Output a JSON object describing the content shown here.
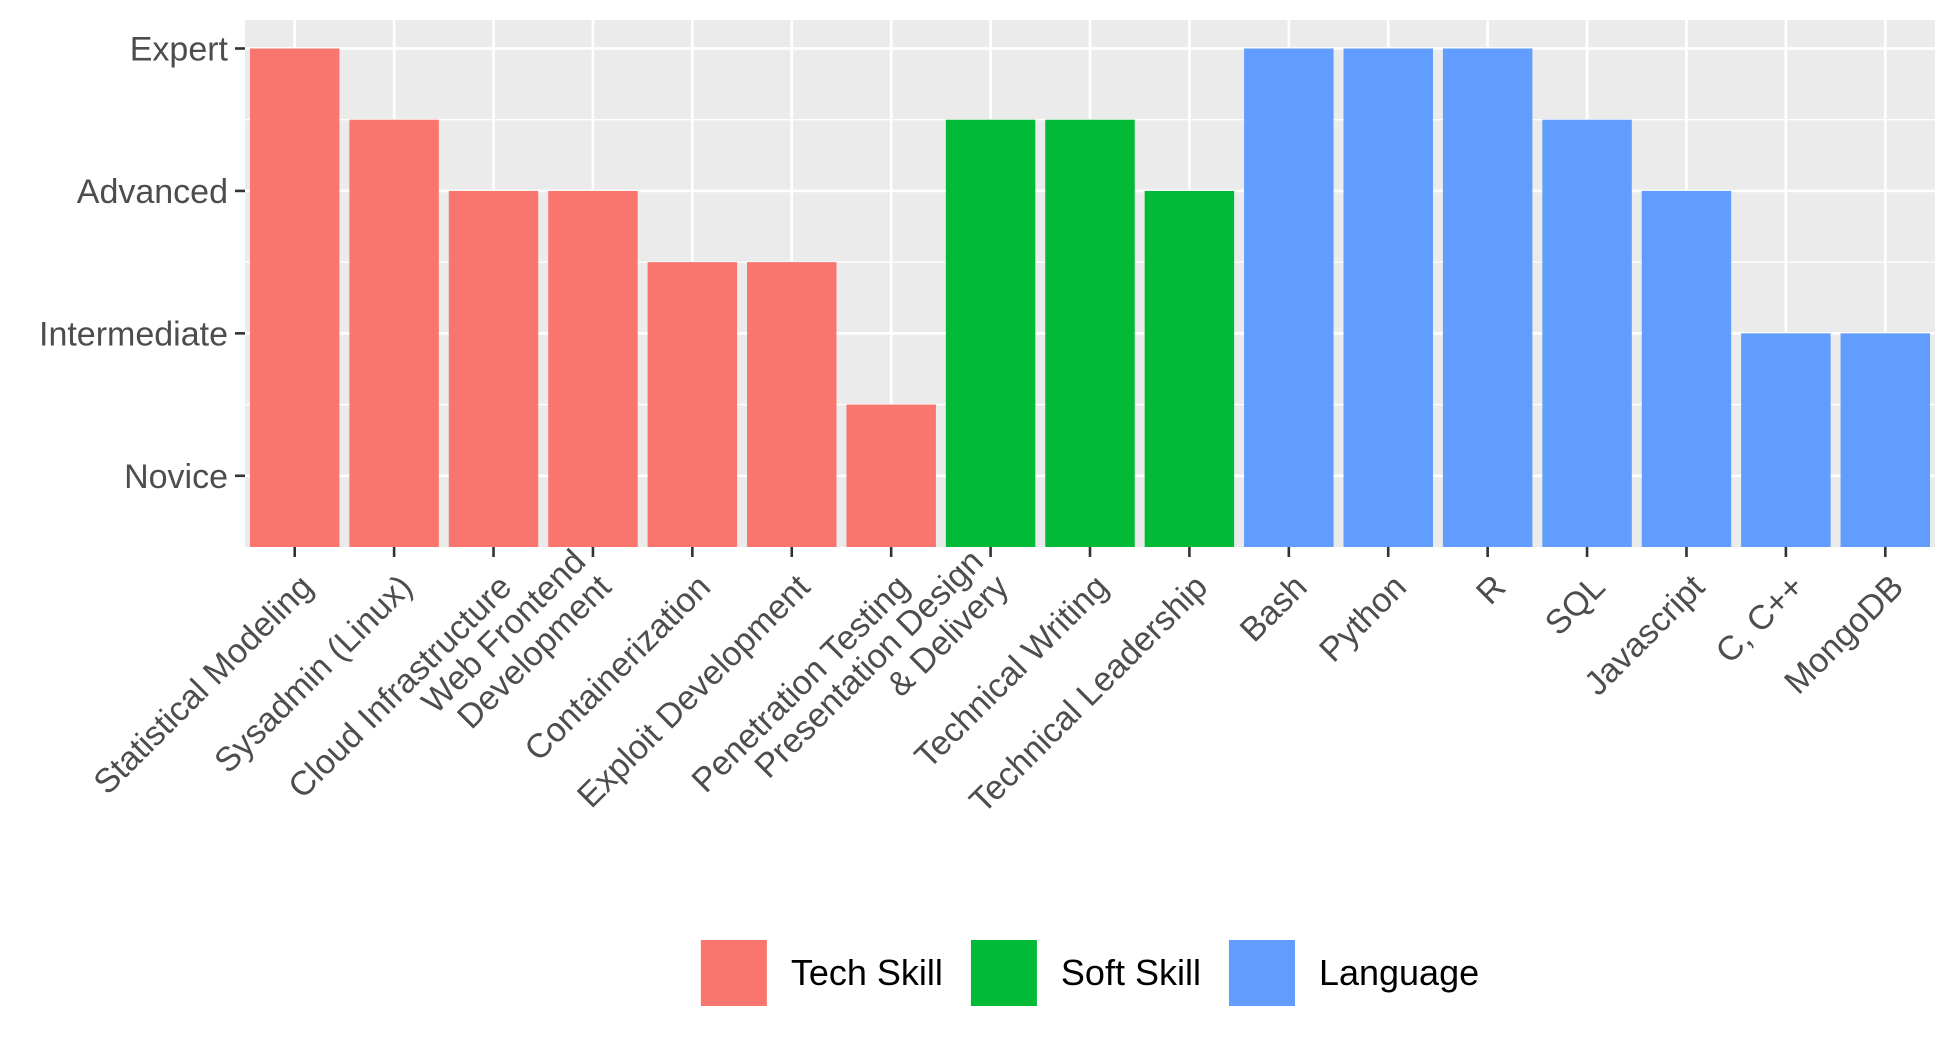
{
  "chart_data": {
    "type": "bar",
    "title": "",
    "xlabel": "",
    "ylabel": "",
    "y_levels": [
      "Novice",
      "Intermediate",
      "Advanced",
      "Expert"
    ],
    "ylim": [
      0.5,
      4.2
    ],
    "grid": true,
    "legend_position": "bottom",
    "categories": [
      "Statistical Modeling",
      "Sysadmin (Linux)",
      "Cloud Infrastructure",
      "Web Frontend\nDevelopment",
      "Containerization",
      "Exploit Development",
      "Penetration Testing",
      "Presentation Design\n& Delivery",
      "Technical Writing",
      "Technical Leadership",
      "Bash",
      "Python",
      "R",
      "SQL",
      "Javascript",
      "C, C++",
      "MongoDB"
    ],
    "values": [
      4,
      3.5,
      3,
      3,
      2.5,
      2.5,
      1.5,
      3.5,
      3.5,
      3,
      4,
      4,
      4,
      3.5,
      3,
      2,
      2
    ],
    "groups": [
      "Tech Skill",
      "Tech Skill",
      "Tech Skill",
      "Tech Skill",
      "Tech Skill",
      "Tech Skill",
      "Tech Skill",
      "Soft Skill",
      "Soft Skill",
      "Soft Skill",
      "Language",
      "Language",
      "Language",
      "Language",
      "Language",
      "Language",
      "Language"
    ],
    "legend": [
      {
        "name": "Tech Skill",
        "color": "#F8766D"
      },
      {
        "name": "Soft Skill",
        "color": "#00BA38"
      },
      {
        "name": "Language",
        "color": "#619CFF"
      }
    ],
    "panel_background": "#EBEBEB",
    "grid_color": "#FFFFFF",
    "tick_color": "#333333",
    "text_color": "#4D4D4D"
  }
}
